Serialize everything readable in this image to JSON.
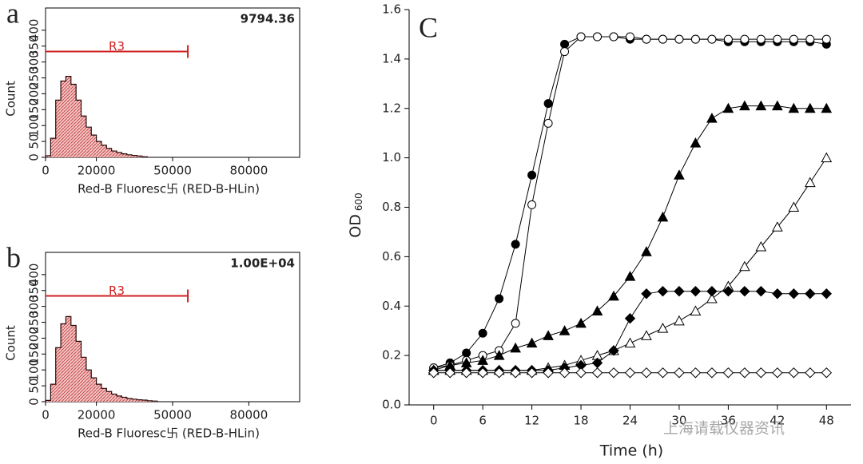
{
  "chart_data": [
    {
      "type": "histogram",
      "panel": "a",
      "annotation": "9794.36",
      "xlabel": "Red-B Fluoresc卐 (RED-B-HLin)",
      "ylabel": "Count",
      "bins": [
        0,
        2000,
        4000,
        6000,
        8000,
        10000,
        12000,
        14000,
        16000,
        18000,
        20000,
        22000,
        24000,
        26000,
        28000,
        30000,
        32000,
        34000,
        36000,
        38000,
        40000
      ],
      "counts": [
        5,
        60,
        180,
        240,
        255,
        230,
        180,
        130,
        95,
        70,
        50,
        38,
        28,
        20,
        15,
        11,
        8,
        6,
        4,
        2
      ],
      "color": "#e89a9a",
      "gate": {
        "label": "R3",
        "range": [
          0,
          56000
        ],
        "y": 333,
        "color": "#d02020"
      },
      "xlim": [
        0,
        100000
      ],
      "xticks": [
        0,
        20000,
        50000,
        80000
      ],
      "ylim": [
        0,
        470
      ],
      "yticks": [
        0,
        50,
        100,
        150,
        200,
        250,
        300,
        350,
        400
      ]
    },
    {
      "type": "histogram",
      "panel": "b",
      "annotation": "1.00E+04",
      "xlabel": "Red-B Fluoresc卐 (RED-B-HLin)",
      "ylabel": "Count",
      "bins": [
        0,
        2000,
        4000,
        6000,
        8000,
        10000,
        12000,
        14000,
        16000,
        18000,
        20000,
        22000,
        24000,
        26000,
        28000,
        30000,
        32000,
        34000,
        36000,
        38000,
        40000,
        42000,
        44000
      ],
      "counts": [
        4,
        55,
        170,
        245,
        268,
        240,
        190,
        140,
        100,
        75,
        55,
        42,
        32,
        24,
        18,
        14,
        10,
        8,
        6,
        5,
        3,
        2
      ],
      "color": "#e89a9a",
      "gate": {
        "label": "R3",
        "range": [
          0,
          56000
        ],
        "y": 333,
        "color": "#d02020"
      },
      "xlim": [
        0,
        100000
      ],
      "xticks": [
        0,
        20000,
        50000,
        80000
      ],
      "ylim": [
        0,
        470
      ],
      "yticks": [
        0,
        50,
        100,
        150,
        200,
        250,
        300,
        350,
        400
      ]
    },
    {
      "type": "line",
      "panel": "C",
      "xlabel": "Time (h)",
      "ylabel": "OD",
      "ylabel_sub": "600",
      "watermark": "上海请载仪器资讯",
      "x": [
        0,
        2,
        4,
        6,
        8,
        10,
        12,
        14,
        16,
        18,
        20,
        22,
        24,
        26,
        28,
        30,
        32,
        34,
        36,
        38,
        40,
        42,
        44,
        46,
        48
      ],
      "series": [
        {
          "marker": "circle",
          "filled": true,
          "color": "#000000",
          "values": [
            0.15,
            0.17,
            0.21,
            0.29,
            0.43,
            0.65,
            0.93,
            1.22,
            1.46,
            1.49,
            1.49,
            1.49,
            1.48,
            1.48,
            1.48,
            1.48,
            1.48,
            1.48,
            1.47,
            1.47,
            1.47,
            1.47,
            1.47,
            1.47,
            1.46
          ]
        },
        {
          "marker": "circle",
          "filled": false,
          "color": "#000000",
          "values": [
            0.15,
            0.16,
            0.18,
            0.2,
            0.22,
            0.33,
            0.81,
            1.14,
            1.43,
            1.49,
            1.49,
            1.49,
            1.49,
            1.48,
            1.48,
            1.48,
            1.48,
            1.48,
            1.48,
            1.48,
            1.48,
            1.48,
            1.48,
            1.48,
            1.48
          ]
        },
        {
          "marker": "triangle",
          "filled": true,
          "color": "#000000",
          "values": [
            0.14,
            0.16,
            0.17,
            0.18,
            0.2,
            0.23,
            0.25,
            0.28,
            0.3,
            0.33,
            0.38,
            0.44,
            0.52,
            0.62,
            0.76,
            0.93,
            1.06,
            1.16,
            1.2,
            1.21,
            1.21,
            1.21,
            1.2,
            1.2,
            1.2
          ]
        },
        {
          "marker": "triangle",
          "filled": false,
          "color": "#000000",
          "values": [
            0.14,
            0.14,
            0.14,
            0.14,
            0.14,
            0.14,
            0.14,
            0.15,
            0.16,
            0.18,
            0.2,
            0.22,
            0.25,
            0.28,
            0.31,
            0.34,
            0.38,
            0.43,
            0.48,
            0.56,
            0.64,
            0.72,
            0.8,
            0.9,
            1.0
          ]
        },
        {
          "marker": "diamond",
          "filled": true,
          "color": "#000000",
          "values": [
            0.14,
            0.14,
            0.14,
            0.14,
            0.14,
            0.14,
            0.14,
            0.14,
            0.15,
            0.16,
            0.17,
            0.22,
            0.35,
            0.45,
            0.46,
            0.46,
            0.46,
            0.46,
            0.46,
            0.46,
            0.46,
            0.45,
            0.45,
            0.45,
            0.45
          ]
        },
        {
          "marker": "diamond",
          "filled": false,
          "color": "#000000",
          "values": [
            0.13,
            0.13,
            0.13,
            0.13,
            0.13,
            0.13,
            0.13,
            0.13,
            0.13,
            0.13,
            0.13,
            0.13,
            0.13,
            0.13,
            0.13,
            0.13,
            0.13,
            0.13,
            0.13,
            0.13,
            0.13,
            0.13,
            0.13,
            0.13,
            0.13
          ]
        }
      ],
      "xlim": [
        -3,
        51
      ],
      "xticks": [
        0,
        6,
        12,
        18,
        24,
        30,
        36,
        42,
        48
      ],
      "ylim": [
        0,
        1.6
      ],
      "yticks": [
        {
          "value": 0,
          "label": "0.0"
        },
        0.2,
        0.4,
        0.6,
        0.8,
        {
          "value": 1,
          "label": "1.0"
        },
        1.2,
        1.4,
        1.6
      ]
    }
  ]
}
